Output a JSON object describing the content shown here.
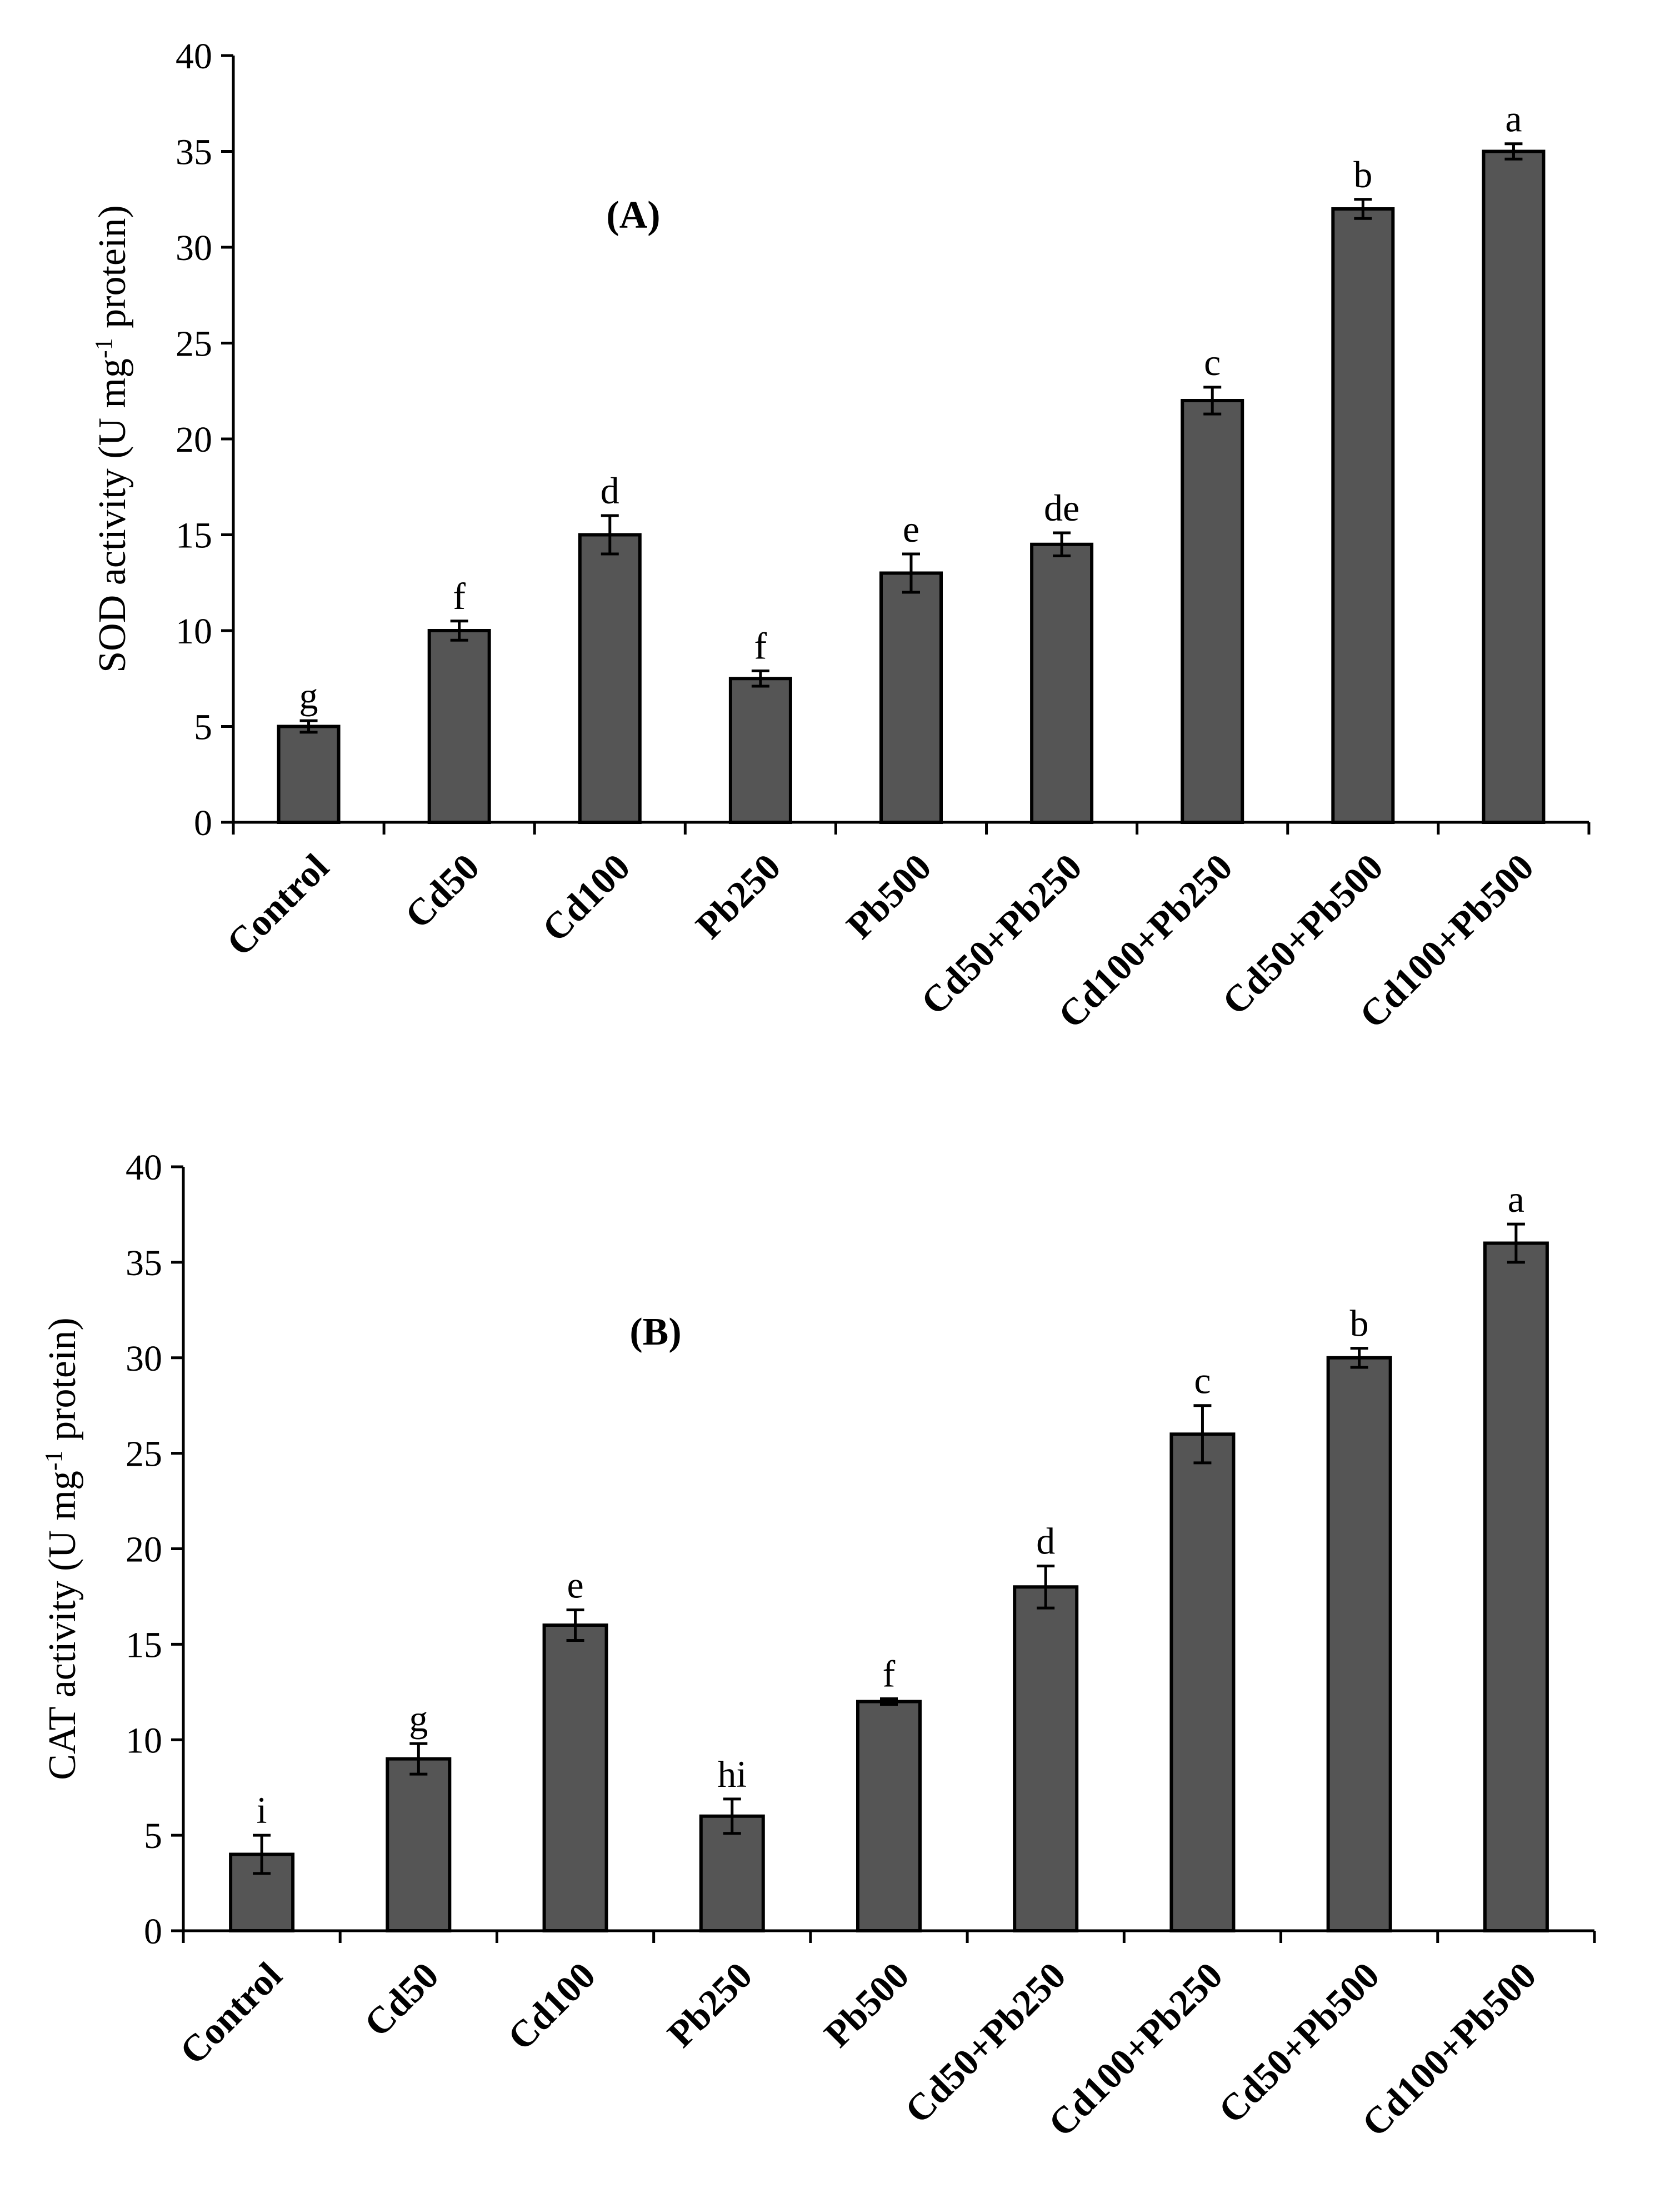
{
  "chart_data": [
    {
      "type": "bar",
      "panel_label": "(A)",
      "categories": [
        "Control",
        "Cd50",
        "Cd100",
        "Pb250",
        "Pb500",
        "Cd50+Pb250",
        "Cd100+Pb250",
        "Cd50+Pb500",
        "Cd100+Pb500"
      ],
      "values": [
        5,
        10,
        15,
        7.5,
        13,
        14.5,
        22,
        32,
        35
      ],
      "errors": [
        0.3,
        0.5,
        1.0,
        0.4,
        1.0,
        0.6,
        0.7,
        0.5,
        0.4
      ],
      "significance": [
        "g",
        "f",
        "d",
        "f",
        "e",
        "de",
        "c",
        "b",
        "a"
      ],
      "ylabel": {
        "prefix": "SOD activity (U mg",
        "superscript": "-1",
        "suffix": " protein)"
      },
      "ylim": [
        0,
        40
      ],
      "yticks": [
        0,
        5,
        10,
        15,
        20,
        25,
        30,
        35,
        40
      ],
      "bar_color": "#555555"
    },
    {
      "type": "bar",
      "panel_label": "(B)",
      "categories": [
        "Control",
        "Cd50",
        "Cd100",
        "Pb250",
        "Pb500",
        "Cd50+Pb250",
        "Cd100+Pb250",
        "Cd50+Pb500",
        "Cd100+Pb500"
      ],
      "values": [
        4,
        9,
        16,
        6,
        12,
        18,
        26,
        30,
        36
      ],
      "errors": [
        1.0,
        0.8,
        0.8,
        0.9,
        0.15,
        1.1,
        1.5,
        0.5,
        1.0
      ],
      "significance": [
        "i",
        "g",
        "e",
        "hi",
        "f",
        "d",
        "c",
        "b",
        "a"
      ],
      "ylabel": {
        "prefix": "CAT activity (U mg",
        "superscript": "-1",
        "suffix": " protein)"
      },
      "ylim": [
        0,
        40
      ],
      "yticks": [
        0,
        5,
        10,
        15,
        20,
        25,
        30,
        35,
        40
      ],
      "bar_color": "#555555"
    }
  ]
}
